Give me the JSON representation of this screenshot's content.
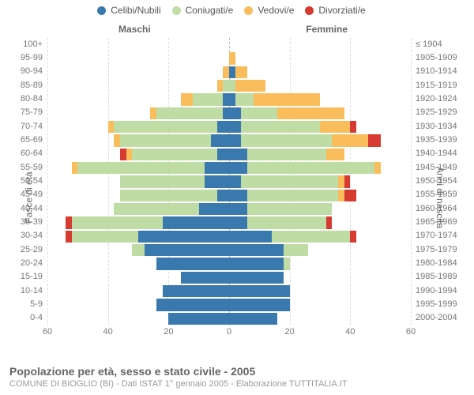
{
  "legend": [
    {
      "label": "Celibi/Nubili",
      "color": "#3a79ad"
    },
    {
      "label": "Coniugati/e",
      "color": "#bfdca5"
    },
    {
      "label": "Vedovi/e",
      "color": "#f9bd5c"
    },
    {
      "label": "Divorziati/e",
      "color": "#d63a30"
    }
  ],
  "gender_labels": {
    "male": "Maschi",
    "female": "Femmine"
  },
  "axis_titles": {
    "left": "Fasce di età",
    "right": "Anni di nascita"
  },
  "x_axis": {
    "max": 60,
    "ticks": [
      60,
      40,
      20,
      0,
      20,
      40,
      60
    ]
  },
  "plot": {
    "background": "#ffffff",
    "grid_color": "#dddddd",
    "center_color": "#bbbbbb"
  },
  "title": "Popolazione per età, sesso e stato civile - 2005",
  "subtitle": "COMUNE DI BIOGLIO (BI) - Dati ISTAT 1° gennaio 2005 - Elaborazione TUTTITALIA.IT",
  "rows": [
    {
      "age": "100+",
      "birth": "≤ 1904",
      "m": {
        "c": 0,
        "co": 0,
        "w": 0,
        "d": 0
      },
      "f": {
        "c": 0,
        "co": 0,
        "w": 0,
        "d": 0
      }
    },
    {
      "age": "95-99",
      "birth": "1905-1909",
      "m": {
        "c": 0,
        "co": 0,
        "w": 0,
        "d": 0
      },
      "f": {
        "c": 0,
        "co": 0,
        "w": 2,
        "d": 0
      }
    },
    {
      "age": "90-94",
      "birth": "1910-1914",
      "m": {
        "c": 0,
        "co": 0,
        "w": 2,
        "d": 0
      },
      "f": {
        "c": 2,
        "co": 0,
        "w": 4,
        "d": 0
      }
    },
    {
      "age": "85-89",
      "birth": "1915-1919",
      "m": {
        "c": 0,
        "co": 2,
        "w": 2,
        "d": 0
      },
      "f": {
        "c": 0,
        "co": 2,
        "w": 10,
        "d": 0
      }
    },
    {
      "age": "80-84",
      "birth": "1920-1924",
      "m": {
        "c": 2,
        "co": 10,
        "w": 4,
        "d": 0
      },
      "f": {
        "c": 2,
        "co": 6,
        "w": 22,
        "d": 0
      }
    },
    {
      "age": "75-79",
      "birth": "1925-1929",
      "m": {
        "c": 2,
        "co": 22,
        "w": 2,
        "d": 0
      },
      "f": {
        "c": 4,
        "co": 12,
        "w": 22,
        "d": 0
      }
    },
    {
      "age": "70-74",
      "birth": "1930-1934",
      "m": {
        "c": 4,
        "co": 34,
        "w": 2,
        "d": 0
      },
      "f": {
        "c": 4,
        "co": 26,
        "w": 10,
        "d": 2
      }
    },
    {
      "age": "65-69",
      "birth": "1935-1939",
      "m": {
        "c": 6,
        "co": 30,
        "w": 2,
        "d": 0
      },
      "f": {
        "c": 4,
        "co": 30,
        "w": 12,
        "d": 4
      }
    },
    {
      "age": "60-64",
      "birth": "1940-1944",
      "m": {
        "c": 4,
        "co": 28,
        "w": 2,
        "d": 2
      },
      "f": {
        "c": 6,
        "co": 26,
        "w": 6,
        "d": 0
      }
    },
    {
      "age": "55-59",
      "birth": "1945-1949",
      "m": {
        "c": 8,
        "co": 42,
        "w": 2,
        "d": 0
      },
      "f": {
        "c": 6,
        "co": 42,
        "w": 2,
        "d": 0
      }
    },
    {
      "age": "50-54",
      "birth": "1950-1954",
      "m": {
        "c": 8,
        "co": 28,
        "w": 0,
        "d": 0
      },
      "f": {
        "c": 4,
        "co": 32,
        "w": 2,
        "d": 2
      }
    },
    {
      "age": "45-49",
      "birth": "1955-1959",
      "m": {
        "c": 4,
        "co": 32,
        "w": 0,
        "d": 0
      },
      "f": {
        "c": 6,
        "co": 30,
        "w": 2,
        "d": 4
      }
    },
    {
      "age": "40-44",
      "birth": "1960-1964",
      "m": {
        "c": 10,
        "co": 28,
        "w": 0,
        "d": 0
      },
      "f": {
        "c": 6,
        "co": 28,
        "w": 0,
        "d": 0
      }
    },
    {
      "age": "35-39",
      "birth": "1965-1969",
      "m": {
        "c": 22,
        "co": 30,
        "w": 0,
        "d": 2
      },
      "f": {
        "c": 6,
        "co": 26,
        "w": 0,
        "d": 2
      }
    },
    {
      "age": "30-34",
      "birth": "1970-1974",
      "m": {
        "c": 30,
        "co": 22,
        "w": 0,
        "d": 2
      },
      "f": {
        "c": 14,
        "co": 26,
        "w": 0,
        "d": 2
      }
    },
    {
      "age": "25-29",
      "birth": "1975-1979",
      "m": {
        "c": 28,
        "co": 4,
        "w": 0,
        "d": 0
      },
      "f": {
        "c": 18,
        "co": 8,
        "w": 0,
        "d": 0
      }
    },
    {
      "age": "20-24",
      "birth": "1980-1984",
      "m": {
        "c": 24,
        "co": 0,
        "w": 0,
        "d": 0
      },
      "f": {
        "c": 18,
        "co": 2,
        "w": 0,
        "d": 0
      }
    },
    {
      "age": "15-19",
      "birth": "1985-1989",
      "m": {
        "c": 16,
        "co": 0,
        "w": 0,
        "d": 0
      },
      "f": {
        "c": 18,
        "co": 0,
        "w": 0,
        "d": 0
      }
    },
    {
      "age": "10-14",
      "birth": "1990-1994",
      "m": {
        "c": 22,
        "co": 0,
        "w": 0,
        "d": 0
      },
      "f": {
        "c": 20,
        "co": 0,
        "w": 0,
        "d": 0
      }
    },
    {
      "age": "5-9",
      "birth": "1995-1999",
      "m": {
        "c": 24,
        "co": 0,
        "w": 0,
        "d": 0
      },
      "f": {
        "c": 20,
        "co": 0,
        "w": 0,
        "d": 0
      }
    },
    {
      "age": "0-4",
      "birth": "2000-2004",
      "m": {
        "c": 20,
        "co": 0,
        "w": 0,
        "d": 0
      },
      "f": {
        "c": 16,
        "co": 0,
        "w": 0,
        "d": 0
      }
    }
  ]
}
